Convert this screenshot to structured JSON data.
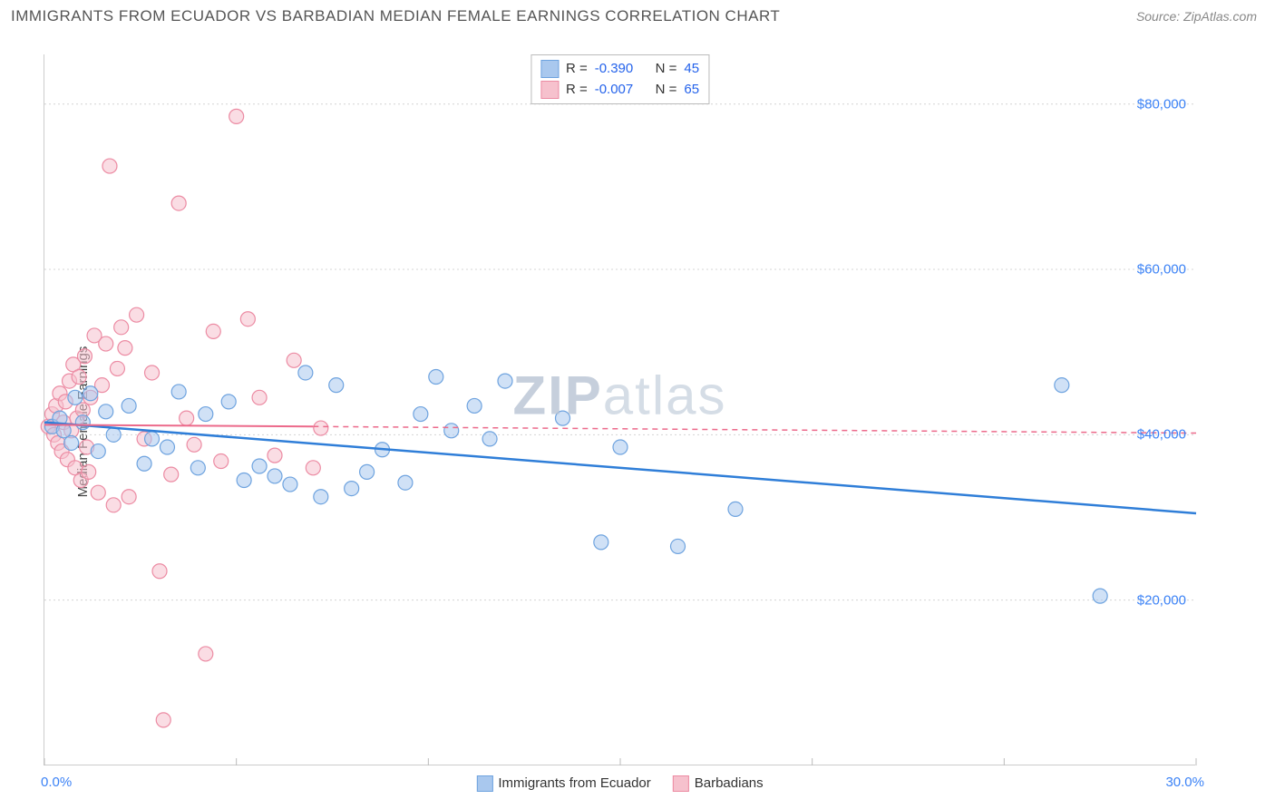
{
  "header": {
    "title": "IMMIGRANTS FROM ECUADOR VS BARBADIAN MEDIAN FEMALE EARNINGS CORRELATION CHART",
    "source_prefix": "Source: ",
    "source_name": "ZipAtlas.com"
  },
  "axes": {
    "ylabel": "Median Female Earnings",
    "xmin": 0,
    "xmax": 30,
    "ymin": 0,
    "ymax": 86000,
    "yticks": [
      20000,
      40000,
      60000,
      80000
    ],
    "ytick_labels": [
      "$20,000",
      "$40,000",
      "$60,000",
      "$80,000"
    ],
    "xtick_labels": {
      "left": "0.0%",
      "right": "30.0%"
    },
    "xtick_marks": [
      0,
      5,
      10,
      15,
      20,
      25,
      30
    ],
    "grid_color": "#d4d4d4"
  },
  "series": {
    "ecuador": {
      "label": "Immigrants from Ecuador",
      "fill": "#a9c8ee",
      "stroke": "#6ea3df",
      "line_color": "#2f7ed8",
      "line_dash": "none",
      "R": "-0.390",
      "N": "45",
      "trend": {
        "x1": 0,
        "y1": 41500,
        "x2": 30,
        "y2": 30500
      },
      "points": [
        [
          0.2,
          41000
        ],
        [
          0.4,
          42000
        ],
        [
          0.5,
          40500
        ],
        [
          0.7,
          39000
        ],
        [
          0.8,
          44500
        ],
        [
          1.0,
          41500
        ],
        [
          1.2,
          45000
        ],
        [
          1.4,
          38000
        ],
        [
          1.6,
          42800
        ],
        [
          1.8,
          40000
        ],
        [
          2.2,
          43500
        ],
        [
          2.6,
          36500
        ],
        [
          2.8,
          39500
        ],
        [
          3.2,
          38500
        ],
        [
          3.5,
          45200
        ],
        [
          4.0,
          36000
        ],
        [
          4.2,
          42500
        ],
        [
          4.8,
          44000
        ],
        [
          5.2,
          34500
        ],
        [
          5.6,
          36200
        ],
        [
          6.0,
          35000
        ],
        [
          6.4,
          34000
        ],
        [
          6.8,
          47500
        ],
        [
          7.2,
          32500
        ],
        [
          7.6,
          46000
        ],
        [
          8.0,
          33500
        ],
        [
          8.4,
          35500
        ],
        [
          8.8,
          38200
        ],
        [
          9.4,
          34200
        ],
        [
          9.8,
          42500
        ],
        [
          10.2,
          47000
        ],
        [
          10.6,
          40500
        ],
        [
          11.2,
          43500
        ],
        [
          11.6,
          39500
        ],
        [
          12.0,
          46500
        ],
        [
          13.5,
          42000
        ],
        [
          14.5,
          27000
        ],
        [
          15.0,
          38500
        ],
        [
          16.5,
          26500
        ],
        [
          18.0,
          31000
        ],
        [
          26.5,
          46000
        ],
        [
          27.5,
          20500
        ]
      ]
    },
    "barbadians": {
      "label": "Barbadians",
      "fill": "#f6c1cd",
      "stroke": "#ec8ba3",
      "line_color": "#ec6a8b",
      "line_dash": "6,5",
      "R": "-0.007",
      "N": "65",
      "trend_solid": {
        "x1": 0,
        "y1": 41200,
        "x2": 7,
        "y2": 41000
      },
      "trend_dashed": {
        "x1": 7,
        "y1": 41000,
        "x2": 30,
        "y2": 40200
      },
      "points": [
        [
          0.1,
          41000
        ],
        [
          0.2,
          42500
        ],
        [
          0.25,
          40000
        ],
        [
          0.3,
          43500
        ],
        [
          0.35,
          39000
        ],
        [
          0.4,
          45000
        ],
        [
          0.45,
          38000
        ],
        [
          0.5,
          41500
        ],
        [
          0.55,
          44000
        ],
        [
          0.6,
          37000
        ],
        [
          0.65,
          46500
        ],
        [
          0.7,
          40500
        ],
        [
          0.75,
          48500
        ],
        [
          0.8,
          36000
        ],
        [
          0.85,
          42000
        ],
        [
          0.9,
          47000
        ],
        [
          0.95,
          34500
        ],
        [
          1.0,
          43000
        ],
        [
          1.05,
          49500
        ],
        [
          1.1,
          38500
        ],
        [
          1.15,
          35500
        ],
        [
          1.2,
          44500
        ],
        [
          1.3,
          52000
        ],
        [
          1.4,
          33000
        ],
        [
          1.5,
          46000
        ],
        [
          1.6,
          51000
        ],
        [
          1.7,
          72500
        ],
        [
          1.8,
          31500
        ],
        [
          1.9,
          48000
        ],
        [
          2.0,
          53000
        ],
        [
          2.1,
          50500
        ],
        [
          2.2,
          32500
        ],
        [
          2.4,
          54500
        ],
        [
          2.6,
          39500
        ],
        [
          2.8,
          47500
        ],
        [
          3.0,
          23500
        ],
        [
          3.1,
          5500
        ],
        [
          3.3,
          35200
        ],
        [
          3.5,
          68000
        ],
        [
          3.7,
          42000
        ],
        [
          3.9,
          38800
        ],
        [
          4.2,
          13500
        ],
        [
          4.4,
          52500
        ],
        [
          4.6,
          36800
        ],
        [
          5.0,
          78500
        ],
        [
          5.3,
          54000
        ],
        [
          5.6,
          44500
        ],
        [
          6.0,
          37500
        ],
        [
          6.5,
          49000
        ],
        [
          7.0,
          36000
        ],
        [
          7.2,
          40800
        ]
      ]
    }
  },
  "legend_top": {
    "R_label": "R =",
    "N_label": "N ="
  },
  "watermark": {
    "zip": "ZIP",
    "atlas": "atlas"
  },
  "style": {
    "point_radius": 8,
    "point_opacity": 0.55,
    "background": "#ffffff"
  }
}
